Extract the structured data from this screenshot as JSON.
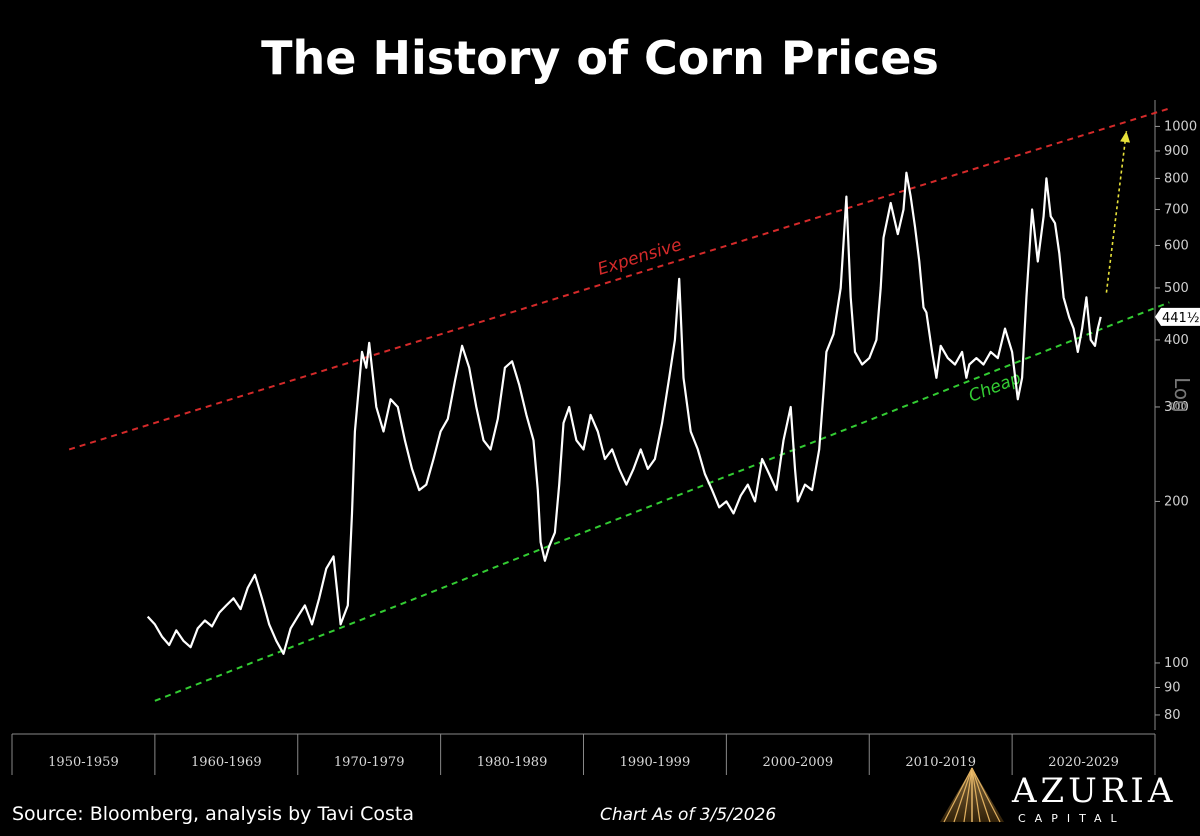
{
  "title": "The History of Corn Prices",
  "source": "Source: Bloomberg, analysis by Tavi Costa",
  "as_of": "Chart As of 3/5/2026",
  "logo": {
    "name": "AZURIA",
    "sub": "CAPITAL"
  },
  "scale_label": "Log",
  "colors": {
    "expensive": "#d42a2a",
    "cheap": "#33cc33",
    "arrow": "#e8e23a",
    "price": "#ffffff",
    "background": "#000000"
  },
  "chart_data": {
    "type": "line",
    "title": "The History of Corn Prices",
    "y_scale": "log",
    "ylim": [
      75,
      1120
    ],
    "xlim": [
      1950,
      2030
    ],
    "y_ticks": [
      80,
      90,
      100,
      200,
      300,
      400,
      500,
      600,
      700,
      800,
      900,
      1000
    ],
    "y_tick_labels": [
      "80",
      "90",
      "100",
      "200",
      "300",
      "400",
      "500",
      "600",
      "700",
      "800",
      "900",
      "1000"
    ],
    "x_categories": [
      "1950-1959",
      "1960-1969",
      "1970-1979",
      "1980-1989",
      "1990-1999",
      "2000-2009",
      "2010-2019",
      "2020-2029"
    ],
    "last_value_label": "441½",
    "series": [
      {
        "values": [
          [
            1959.5,
            122
          ],
          [
            1960.0,
            118
          ],
          [
            1960.5,
            112
          ],
          [
            1961.0,
            108
          ],
          [
            1961.5,
            115
          ],
          [
            1962.0,
            110
          ],
          [
            1962.5,
            107
          ],
          [
            1963.0,
            116
          ],
          [
            1963.5,
            120
          ],
          [
            1964.0,
            117
          ],
          [
            1964.5,
            124
          ],
          [
            1965.0,
            128
          ],
          [
            1965.5,
            132
          ],
          [
            1966.0,
            126
          ],
          [
            1966.5,
            138
          ],
          [
            1967.0,
            146
          ],
          [
            1967.5,
            132
          ],
          [
            1968.0,
            118
          ],
          [
            1968.5,
            110
          ],
          [
            1969.0,
            104
          ],
          [
            1969.5,
            116
          ],
          [
            1970.0,
            122
          ],
          [
            1970.5,
            128
          ],
          [
            1971.0,
            118
          ],
          [
            1971.5,
            132
          ],
          [
            1972.0,
            150
          ],
          [
            1972.5,
            158
          ],
          [
            1973.0,
            118
          ],
          [
            1973.5,
            128
          ],
          [
            1973.8,
            190
          ],
          [
            1974.0,
            270
          ],
          [
            1974.5,
            380
          ],
          [
            1974.8,
            355
          ],
          [
            1975.0,
            395
          ],
          [
            1975.5,
            300
          ],
          [
            1976.0,
            270
          ],
          [
            1976.5,
            310
          ],
          [
            1977.0,
            300
          ],
          [
            1977.5,
            260
          ],
          [
            1978.0,
            230
          ],
          [
            1978.5,
            210
          ],
          [
            1979.0,
            215
          ],
          [
            1979.5,
            240
          ],
          [
            1980.0,
            270
          ],
          [
            1980.5,
            285
          ],
          [
            1981.0,
            335
          ],
          [
            1981.5,
            390
          ],
          [
            1982.0,
            355
          ],
          [
            1982.5,
            300
          ],
          [
            1983.0,
            260
          ],
          [
            1983.5,
            250
          ],
          [
            1984.0,
            285
          ],
          [
            1984.5,
            355
          ],
          [
            1985.0,
            365
          ],
          [
            1985.5,
            330
          ],
          [
            1986.0,
            290
          ],
          [
            1986.5,
            260
          ],
          [
            1986.8,
            210
          ],
          [
            1987.0,
            168
          ],
          [
            1987.3,
            155
          ],
          [
            1987.6,
            165
          ],
          [
            1988.0,
            175
          ],
          [
            1988.3,
            215
          ],
          [
            1988.6,
            280
          ],
          [
            1989.0,
            300
          ],
          [
            1989.5,
            260
          ],
          [
            1990.0,
            250
          ],
          [
            1990.5,
            290
          ],
          [
            1991.0,
            270
          ],
          [
            1991.5,
            240
          ],
          [
            1992.0,
            250
          ],
          [
            1992.5,
            230
          ],
          [
            1993.0,
            215
          ],
          [
            1993.5,
            230
          ],
          [
            1994.0,
            250
          ],
          [
            1994.5,
            230
          ],
          [
            1995.0,
            240
          ],
          [
            1995.5,
            280
          ],
          [
            1996.0,
            340
          ],
          [
            1996.4,
            400
          ],
          [
            1996.7,
            520
          ],
          [
            1997.0,
            340
          ],
          [
            1997.5,
            270
          ],
          [
            1998.0,
            250
          ],
          [
            1998.5,
            225
          ],
          [
            1999.0,
            210
          ],
          [
            1999.5,
            195
          ],
          [
            2000.0,
            200
          ],
          [
            2000.5,
            190
          ],
          [
            2001.0,
            205
          ],
          [
            2001.5,
            215
          ],
          [
            2002.0,
            200
          ],
          [
            2002.5,
            240
          ],
          [
            2003.0,
            225
          ],
          [
            2003.5,
            210
          ],
          [
            2004.0,
            260
          ],
          [
            2004.5,
            300
          ],
          [
            2004.8,
            230
          ],
          [
            2005.0,
            200
          ],
          [
            2005.5,
            215
          ],
          [
            2006.0,
            210
          ],
          [
            2006.5,
            250
          ],
          [
            2006.8,
            320
          ],
          [
            2007.0,
            380
          ],
          [
            2007.5,
            410
          ],
          [
            2008.0,
            500
          ],
          [
            2008.4,
            740
          ],
          [
            2008.7,
            480
          ],
          [
            2009.0,
            380
          ],
          [
            2009.5,
            360
          ],
          [
            2010.0,
            370
          ],
          [
            2010.5,
            400
          ],
          [
            2010.8,
            500
          ],
          [
            2011.0,
            620
          ],
          [
            2011.5,
            720
          ],
          [
            2012.0,
            630
          ],
          [
            2012.4,
            700
          ],
          [
            2012.6,
            820
          ],
          [
            2012.9,
            740
          ],
          [
            2013.2,
            650
          ],
          [
            2013.5,
            560
          ],
          [
            2013.8,
            460
          ],
          [
            2014.0,
            450
          ],
          [
            2014.4,
            380
          ],
          [
            2014.7,
            340
          ],
          [
            2015.0,
            390
          ],
          [
            2015.5,
            370
          ],
          [
            2016.0,
            360
          ],
          [
            2016.5,
            380
          ],
          [
            2016.8,
            340
          ],
          [
            2017.0,
            360
          ],
          [
            2017.5,
            370
          ],
          [
            2018.0,
            360
          ],
          [
            2018.5,
            380
          ],
          [
            2019.0,
            370
          ],
          [
            2019.5,
            420
          ],
          [
            2020.0,
            380
          ],
          [
            2020.4,
            310
          ],
          [
            2020.7,
            340
          ],
          [
            2021.0,
            480
          ],
          [
            2021.4,
            700
          ],
          [
            2021.8,
            560
          ],
          [
            2022.2,
            680
          ],
          [
            2022.4,
            800
          ],
          [
            2022.7,
            680
          ],
          [
            2023.0,
            660
          ],
          [
            2023.3,
            580
          ],
          [
            2023.6,
            480
          ],
          [
            2024.0,
            440
          ],
          [
            2024.3,
            420
          ],
          [
            2024.6,
            380
          ],
          [
            2024.9,
            420
          ],
          [
            2025.2,
            480
          ],
          [
            2025.5,
            400
          ],
          [
            2025.8,
            390
          ],
          [
            2026.0,
            420
          ],
          [
            2026.2,
            441.5
          ]
        ]
      }
    ],
    "annotations": [
      {
        "text": "Expensive",
        "kind": "trend",
        "from": [
          1954,
          250
        ],
        "to": [
          2031,
          1080
        ]
      },
      {
        "text": "Cheap",
        "kind": "trend",
        "from": [
          1960,
          85
        ],
        "to": [
          2031,
          470
        ]
      },
      {
        "text": "",
        "kind": "arrow",
        "from": [
          2026.6,
          490
        ],
        "to": [
          2028.0,
          980
        ]
      }
    ]
  }
}
